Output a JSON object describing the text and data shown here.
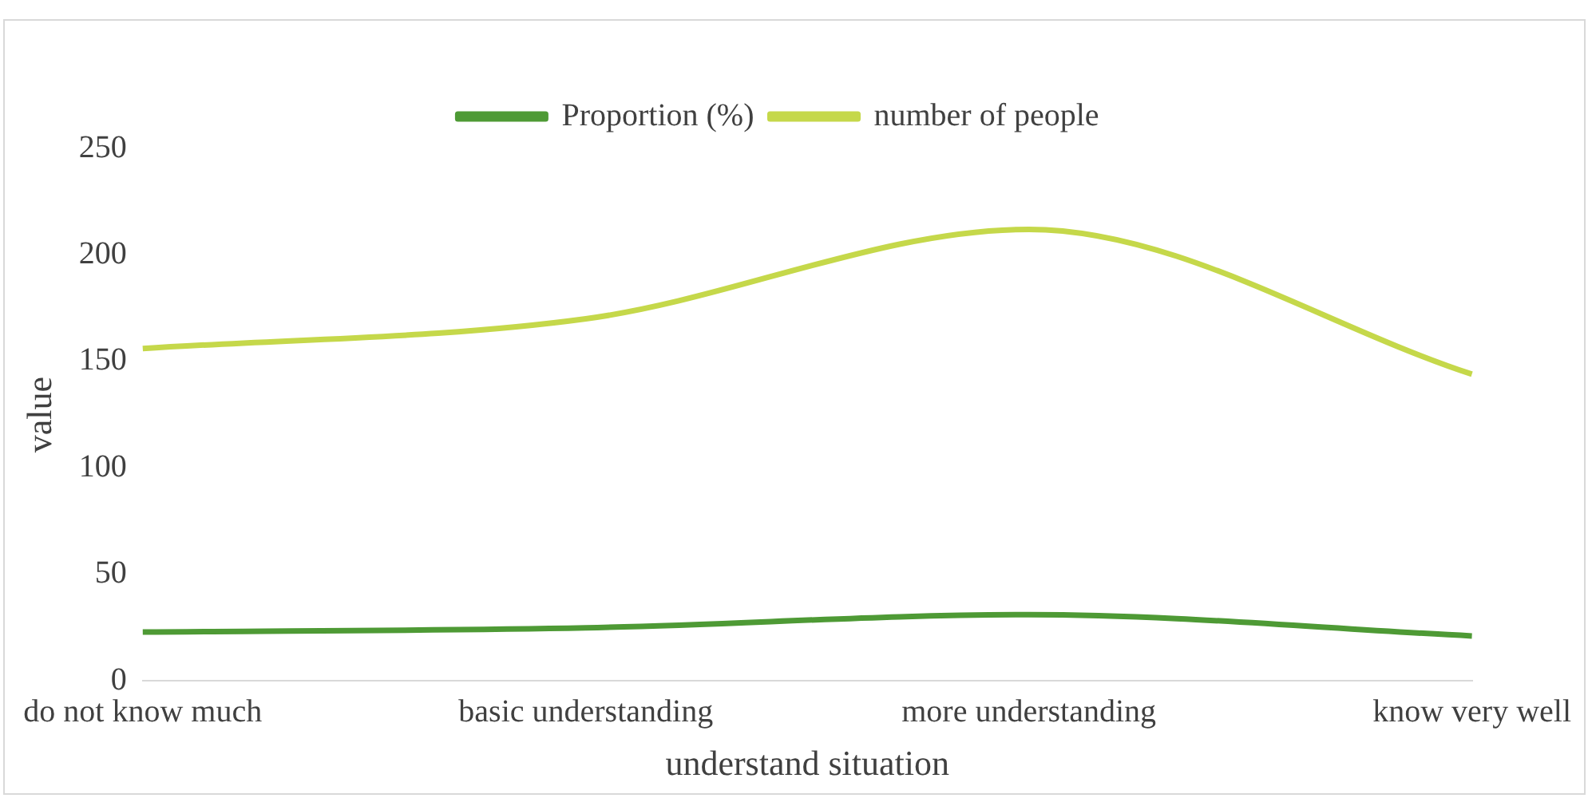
{
  "chart_data": {
    "type": "line",
    "xlabel": "understand situation",
    "ylabel": "value",
    "categories": [
      "do not know much",
      "basic understanding",
      "more understanding",
      "know very well"
    ],
    "series": [
      {
        "name": "Proportion (%)",
        "color": "#4e9a35",
        "values": [
          22.9,
          24.9,
          31.1,
          21.1
        ]
      },
      {
        "name": "number of people",
        "color": "#c5d84a",
        "values": [
          156,
          170,
          212,
          144
        ]
      }
    ],
    "ylim": [
      0,
      250
    ],
    "yticks": [
      0,
      50,
      100,
      150,
      200,
      250
    ],
    "grid": false,
    "legend": "top",
    "marker": "none",
    "line_style": "solid"
  }
}
